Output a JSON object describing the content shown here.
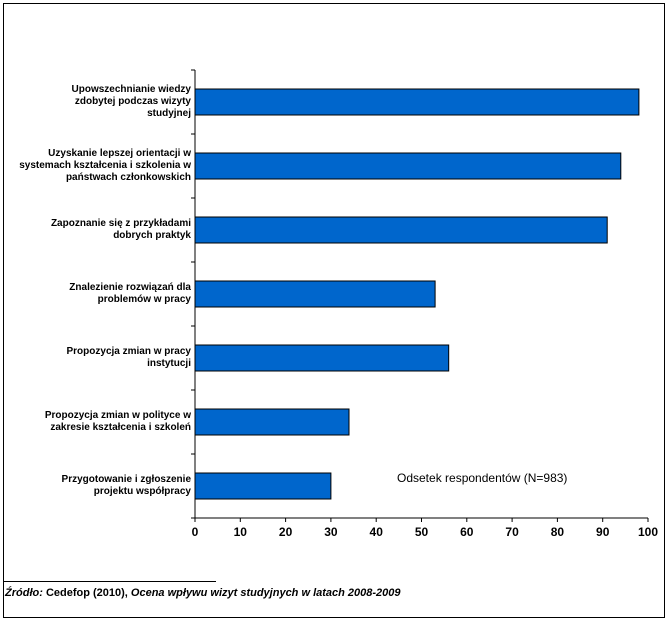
{
  "chart_data": {
    "type": "bar",
    "orientation": "horizontal",
    "categories": [
      "Upowszechnianie wiedzy zdobytej podczas wizyty studyjnej",
      "Uzyskanie lepszej orientacji w systemach kształcenia i szkolenia w państwach członkowskich",
      "Zapoznanie się z przykładami dobrych praktyk",
      "Znalezienie rozwiązań dla problemów w pracy",
      "Propozycja zmian w pracy instytucji",
      "Propozycja zmian w polityce  w zakresie kształcenia i szkoleń",
      "Przygotowanie i zgłoszenie projektu współpracy"
    ],
    "category_lines": [
      [
        "Upowszechnianie wiedzy",
        "zdobytej podczas wizyty",
        "studyjnej"
      ],
      [
        "Uzyskanie lepszej orientacji w",
        "systemach kształcenia i szkolenia w",
        "państwach członkowskich"
      ],
      [
        "Zapoznanie się z przykładami",
        "dobrych praktyk"
      ],
      [
        "Znalezienie rozwiązań dla",
        "problemów w pracy"
      ],
      [
        "Propozycja zmian w pracy",
        "instytucji"
      ],
      [
        "Propozycja zmian w polityce  w",
        "zakresie kształcenia i szkoleń"
      ],
      [
        "Przygotowanie i zgłoszenie",
        "projektu współpracy"
      ]
    ],
    "values": [
      98,
      94,
      91,
      53,
      56,
      34,
      30
    ],
    "xlim": [
      0,
      100
    ],
    "xticks": [
      0,
      10,
      20,
      30,
      40,
      50,
      60,
      70,
      80,
      90,
      100
    ],
    "annotation": "Odsetek respondentów (N=983)",
    "bar_color": "#0066CC",
    "grid": false
  },
  "source": {
    "label": "Źródło:",
    "org": " Cedefop (2010), ",
    "title": "Ocena wpływu wizyt studyjnych w latach 2008-2009"
  }
}
